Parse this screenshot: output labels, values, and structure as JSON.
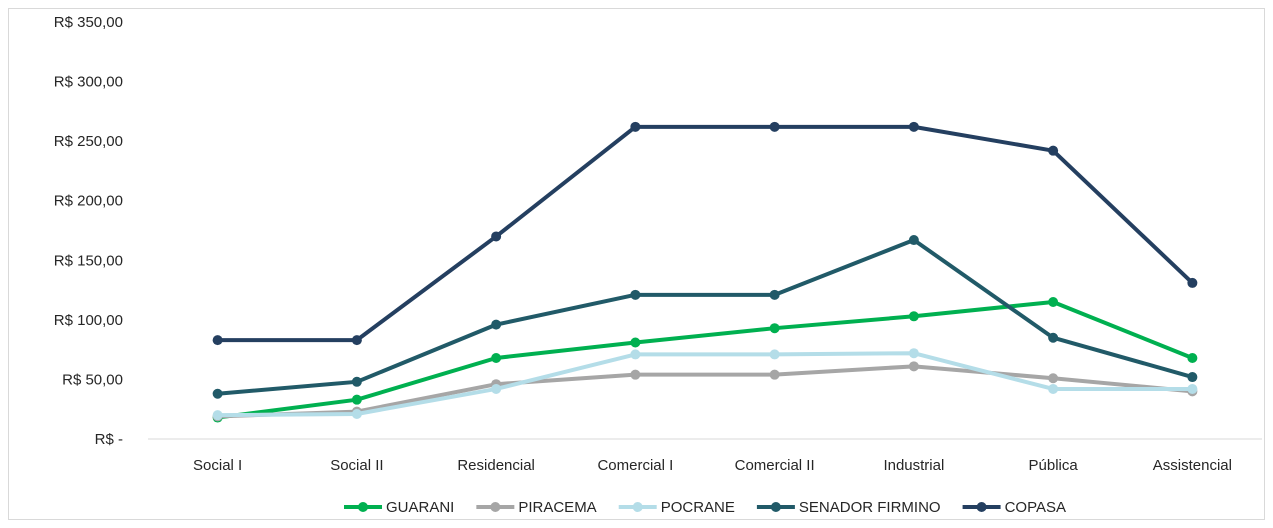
{
  "chart_data": {
    "type": "line",
    "title": "",
    "xlabel": "",
    "ylabel": "",
    "categories": [
      "Social I",
      "Social II",
      "Residencial",
      "Comercial I",
      "Comercial II",
      "Industrial",
      "Pública",
      "Assistencial"
    ],
    "ylim": [
      0,
      350
    ],
    "yticks": [
      0,
      50,
      100,
      150,
      200,
      250,
      300,
      350
    ],
    "ytick_labels": [
      "R$ -",
      "R$ 50,00",
      "R$ 100,00",
      "R$ 150,00",
      "R$ 200,00",
      "R$ 250,00",
      "R$ 300,00",
      "R$ 350,00"
    ],
    "grid": false,
    "legend_position": "bottom",
    "series": [
      {
        "name": "GUARANI",
        "color": "#00b050",
        "values": [
          18,
          33,
          68,
          81,
          93,
          103,
          115,
          68
        ]
      },
      {
        "name": "PIRACEMA",
        "color": "#a6a6a6",
        "values": [
          19,
          23,
          46,
          54,
          54,
          61,
          51,
          40
        ]
      },
      {
        "name": "POCRANE",
        "color": "#b4dde8",
        "values": [
          20,
          21,
          42,
          71,
          71,
          72,
          42,
          42
        ]
      },
      {
        "name": "SENADOR FIRMINO",
        "color": "#215a68",
        "values": [
          38,
          48,
          96,
          121,
          121,
          167,
          85,
          52
        ]
      },
      {
        "name": "COPASA",
        "color": "#243f60",
        "values": [
          83,
          83,
          170,
          262,
          262,
          262,
          242,
          131
        ]
      }
    ]
  }
}
